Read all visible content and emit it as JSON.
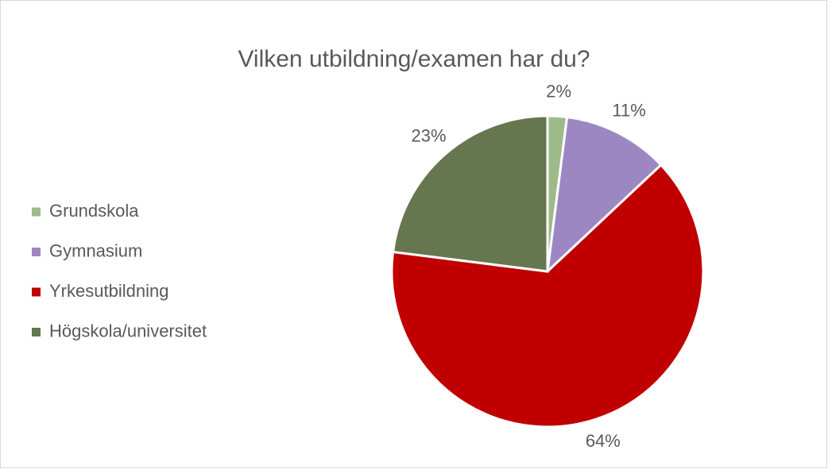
{
  "chart_data": {
    "type": "pie",
    "title": "Vilken utbildning/examen har du?",
    "categories": [
      "Grundskola",
      "Gymnasium",
      "Yrkesutbildning",
      "Högskola/universitet"
    ],
    "values": [
      2,
      11,
      64,
      23
    ],
    "value_labels": [
      "2%",
      "11%",
      "64%",
      "23%"
    ],
    "colors": [
      "#9dba8b",
      "#9d87c3",
      "#c00000",
      "#66774f"
    ],
    "legend": "left"
  }
}
